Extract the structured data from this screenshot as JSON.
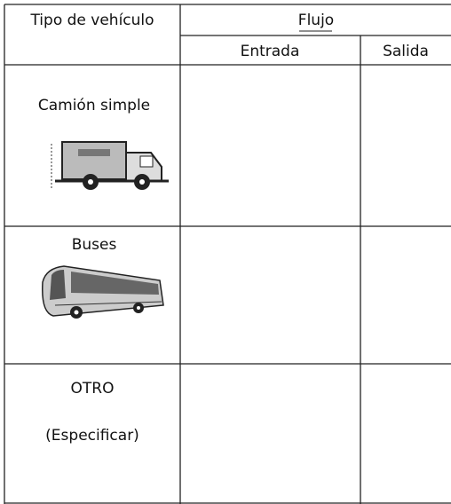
{
  "table": {
    "header": {
      "type_label": "Tipo de vehículo",
      "flow_label": "Flujo",
      "columns": [
        "Entrada",
        "Salida"
      ]
    },
    "rows": [
      {
        "label": "Camión simple"
      },
      {
        "label": "Buses"
      },
      {
        "label": [
          "OTRO",
          "(Especificar)"
        ]
      }
    ]
  }
}
